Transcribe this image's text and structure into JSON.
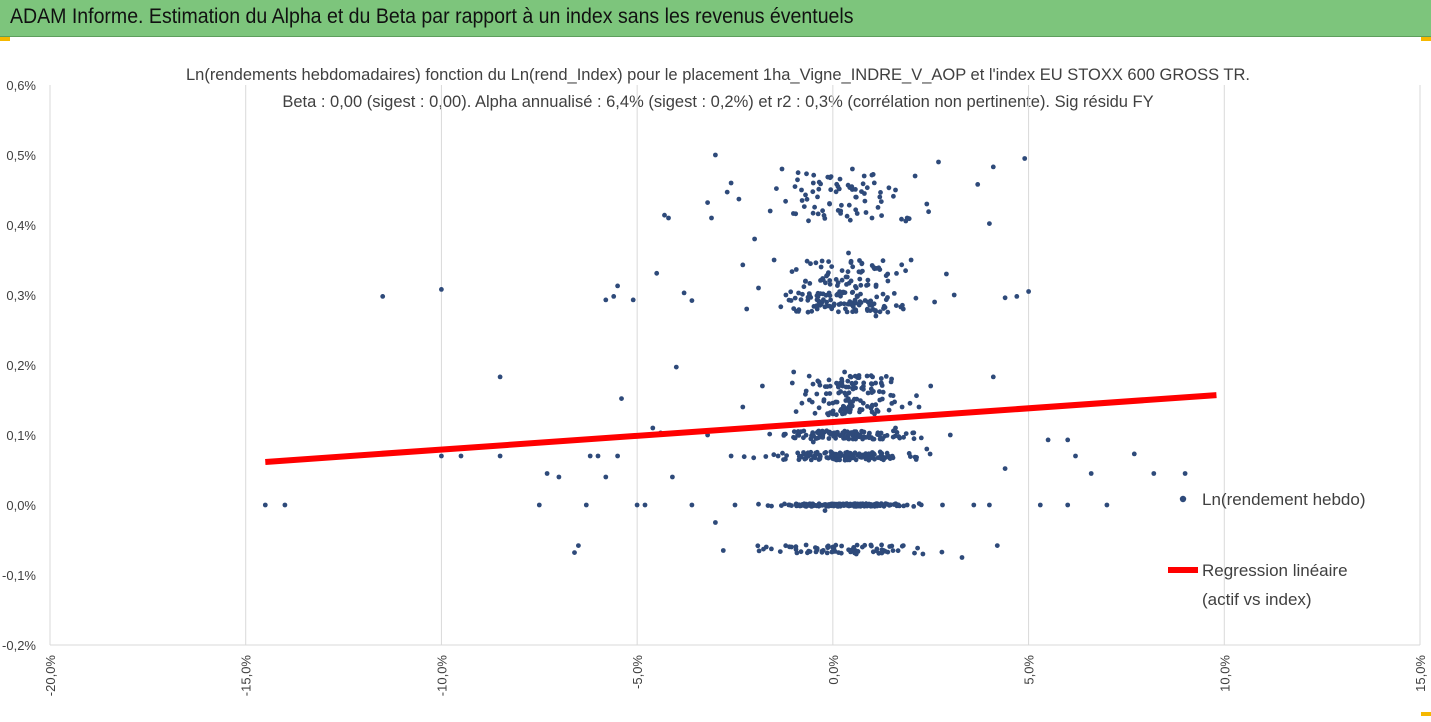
{
  "banner": {
    "title": "ADAM Informe. Estimation du Alpha et du Beta par rapport à un index sans les revenus éventuels",
    "color": "#7dc57c"
  },
  "chart_data": {
    "type": "scatter",
    "title_line1": "Ln(rendements hebdomadaires) fonction du Ln(rend_Index)  pour le placement 1ha_Vigne_INDRE_V_AOP et l'index EU STOXX  600 GROSS TR.",
    "title_line2": "Beta : 0,00 (sigest : 0,00).  Alpha annualisé : 6,4% (sigest : 0,2%) et r2 : 0,3% (corrélation non pertinente). Sig résidu FY",
    "xlim": [
      -20,
      15
    ],
    "ylim": [
      -0.2,
      0.6
    ],
    "x_ticks": [
      "-20,0%",
      "-15,0%",
      "-10,0%",
      "-5,0%",
      "0,0%",
      "5,0%",
      "10,0%",
      "15,0%"
    ],
    "y_ticks": [
      "0,6%",
      "0,5%",
      "0,4%",
      "0,3%",
      "0,2%",
      "0,1%",
      "0,0%",
      "-0,1%",
      "-0,2%"
    ],
    "grid": "vertical",
    "legend_position": "right",
    "series": [
      {
        "name": "Ln(rendement hebdo)",
        "color": "#2e4a7a",
        "points": [
          [
            -14.5,
            0.0
          ],
          [
            -14.0,
            0.0
          ],
          [
            -11.5,
            0.298
          ],
          [
            -10.0,
            0.308
          ],
          [
            -10.0,
            0.07
          ],
          [
            -9.5,
            0.07
          ],
          [
            -8.5,
            0.183
          ],
          [
            -8.5,
            0.07
          ],
          [
            -7.5,
            0.0
          ],
          [
            -7.3,
            0.045
          ],
          [
            -7.0,
            0.04
          ],
          [
            -6.6,
            -0.068
          ],
          [
            -6.5,
            -0.058
          ],
          [
            -6.3,
            0.0
          ],
          [
            -6.0,
            0.07
          ],
          [
            -5.8,
            0.293
          ],
          [
            -5.6,
            0.298
          ],
          [
            -5.5,
            0.313
          ],
          [
            -5.4,
            0.152
          ],
          [
            -5.1,
            0.293
          ],
          [
            -5.0,
            0.0
          ],
          [
            -4.8,
            0.0
          ],
          [
            -4.6,
            0.11
          ],
          [
            -4.5,
            0.331
          ],
          [
            -4.4,
            0.103
          ],
          [
            -4.3,
            0.414
          ],
          [
            -4.2,
            0.41
          ],
          [
            -4.0,
            0.197
          ],
          [
            -3.8,
            0.303
          ],
          [
            -3.6,
            0.292
          ],
          [
            -3.2,
            0.432
          ],
          [
            -3.1,
            0.41
          ],
          [
            -3.0,
            0.5
          ],
          [
            -2.7,
            0.447
          ],
          [
            -2.6,
            0.46
          ],
          [
            -2.4,
            0.437
          ],
          [
            -2.3,
            0.343
          ],
          [
            -2.0,
            0.38
          ],
          [
            3.7,
            0.458
          ],
          [
            4.0,
            0.402
          ],
          [
            4.1,
            0.483
          ],
          [
            4.1,
            0.183
          ],
          [
            4.9,
            0.495
          ],
          [
            5.0,
            0.305
          ],
          [
            4.7,
            0.298
          ],
          [
            4.4,
            0.296
          ],
          [
            5.5,
            0.093
          ],
          [
            6.0,
            0.093
          ],
          [
            6.2,
            0.07
          ],
          [
            6.6,
            0.045
          ],
          [
            7.0,
            0.0
          ],
          [
            7.7,
            0.073
          ],
          [
            8.2,
            0.045
          ],
          [
            9.0,
            0.045
          ],
          [
            3.3,
            -0.075
          ],
          [
            4.2,
            -0.058
          ],
          [
            4.4,
            0.052
          ],
          [
            5.3,
            0.0
          ],
          [
            6.0,
            0.0
          ],
          [
            4.0,
            0.0
          ],
          [
            3.6,
            0.0
          ],
          [
            -0.2,
            -0.008
          ],
          [
            -3.0,
            -0.025
          ],
          [
            -5.5,
            0.07
          ],
          [
            -6.2,
            0.07
          ],
          [
            -5.8,
            0.04
          ],
          [
            -4.1,
            0.04
          ],
          [
            0.8,
            0.47
          ],
          [
            1.2,
            0.44
          ],
          [
            0.2,
            0.42
          ],
          [
            -0.5,
            0.46
          ],
          [
            1.6,
            0.45
          ],
          [
            2.4,
            0.43
          ],
          [
            2.7,
            0.49
          ],
          [
            -1.3,
            0.48
          ],
          [
            -0.8,
            0.45
          ],
          [
            1.0,
            0.41
          ],
          [
            2.1,
            0.47
          ],
          [
            -1.6,
            0.42
          ],
          [
            0.5,
            0.48
          ],
          [
            1.9,
            0.41
          ],
          [
            -0.3,
            0.34
          ],
          [
            0.6,
            0.31
          ],
          [
            1.4,
            0.33
          ],
          [
            -1.2,
            0.3
          ],
          [
            -0.7,
            0.32
          ],
          [
            0.9,
            0.29
          ],
          [
            2.0,
            0.35
          ],
          [
            2.6,
            0.29
          ],
          [
            -1.9,
            0.31
          ],
          [
            1.8,
            0.28
          ],
          [
            -2.2,
            0.28
          ],
          [
            0.1,
            0.3
          ],
          [
            0.4,
            0.36
          ],
          [
            -0.4,
            0.28
          ],
          [
            3.1,
            0.3
          ],
          [
            2.9,
            0.33
          ],
          [
            1.1,
            0.27
          ],
          [
            -1.5,
            0.35
          ],
          [
            0.3,
            0.19
          ],
          [
            0.9,
            0.16
          ],
          [
            -0.6,
            0.15
          ],
          [
            1.5,
            0.18
          ],
          [
            -1.8,
            0.17
          ],
          [
            2.2,
            0.14
          ],
          [
            0.0,
            0.13
          ],
          [
            -1.0,
            0.19
          ],
          [
            1.2,
            0.15
          ],
          [
            2.5,
            0.17
          ],
          [
            -2.3,
            0.14
          ],
          [
            0.7,
            0.1
          ],
          [
            -0.5,
            0.09
          ],
          [
            1.6,
            0.11
          ],
          [
            -1.4,
            0.07
          ],
          [
            0.2,
            0.07
          ],
          [
            2.4,
            0.08
          ],
          [
            -2.6,
            0.07
          ],
          [
            1.0,
            0.07
          ],
          [
            -0.9,
            0.1
          ],
          [
            3.0,
            0.1
          ],
          [
            -3.2,
            0.1
          ],
          [
            0.4,
            0.0
          ],
          [
            -1.1,
            0.0
          ],
          [
            1.9,
            0.0
          ],
          [
            -2.5,
            0.0
          ],
          [
            2.8,
            0.0
          ],
          [
            -3.6,
            0.0
          ],
          [
            0.0,
            -0.06
          ],
          [
            1.3,
            -0.065
          ],
          [
            -1.7,
            -0.06
          ],
          [
            2.3,
            -0.07
          ],
          [
            -2.8,
            -0.065
          ],
          [
            0.6,
            -0.07
          ],
          [
            -0.4,
            -0.062
          ],
          [
            1.8,
            -0.058
          ]
        ]
      },
      {
        "name": "Regression linéaire\n(actif vs index)",
        "color": "#ff0000",
        "line": [
          [
            -14.5,
            0.0615
          ],
          [
            9.8,
            0.157
          ]
        ]
      }
    ]
  },
  "legend": {
    "series1_label": "Ln(rendement hebdo)",
    "series2_line1": "Regression linéaire",
    "series2_line2": "(actif vs index)"
  }
}
